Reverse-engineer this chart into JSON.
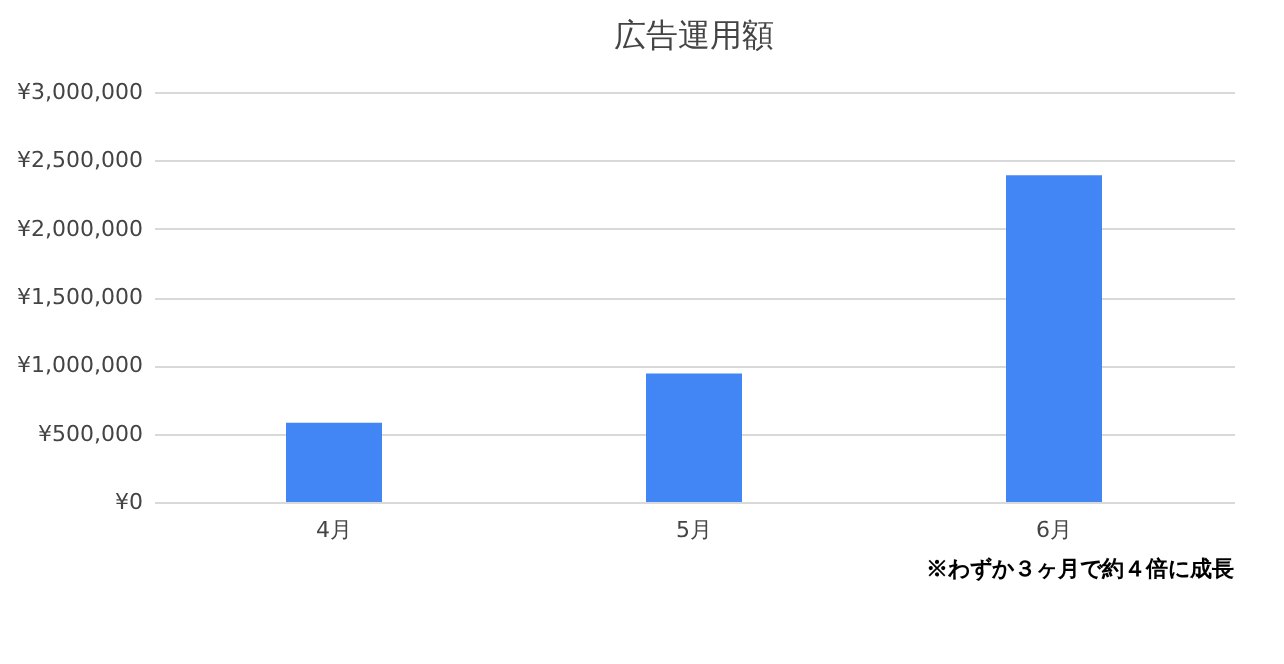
{
  "chart_data": {
    "type": "bar",
    "title": "広告運用額",
    "categories": [
      "4月",
      "5月",
      "6月"
    ],
    "values": [
      580000,
      940000,
      2390000
    ],
    "color": "#4285f4",
    "ylim": [
      0,
      3000000
    ],
    "yticks": [
      {
        "value": 0,
        "label": "¥0"
      },
      {
        "value": 500000,
        "label": "¥500,000"
      },
      {
        "value": 1000000,
        "label": "¥1,000,000"
      },
      {
        "value": 1500000,
        "label": "¥1,500,000"
      },
      {
        "value": 2000000,
        "label": "¥2,000,000"
      },
      {
        "value": 2500000,
        "label": "¥2,500,000"
      },
      {
        "value": 3000000,
        "label": "¥3,000,000"
      }
    ],
    "grid": "y",
    "annotations": [
      "※わずか３ヶ月で約４倍に成長"
    ]
  }
}
